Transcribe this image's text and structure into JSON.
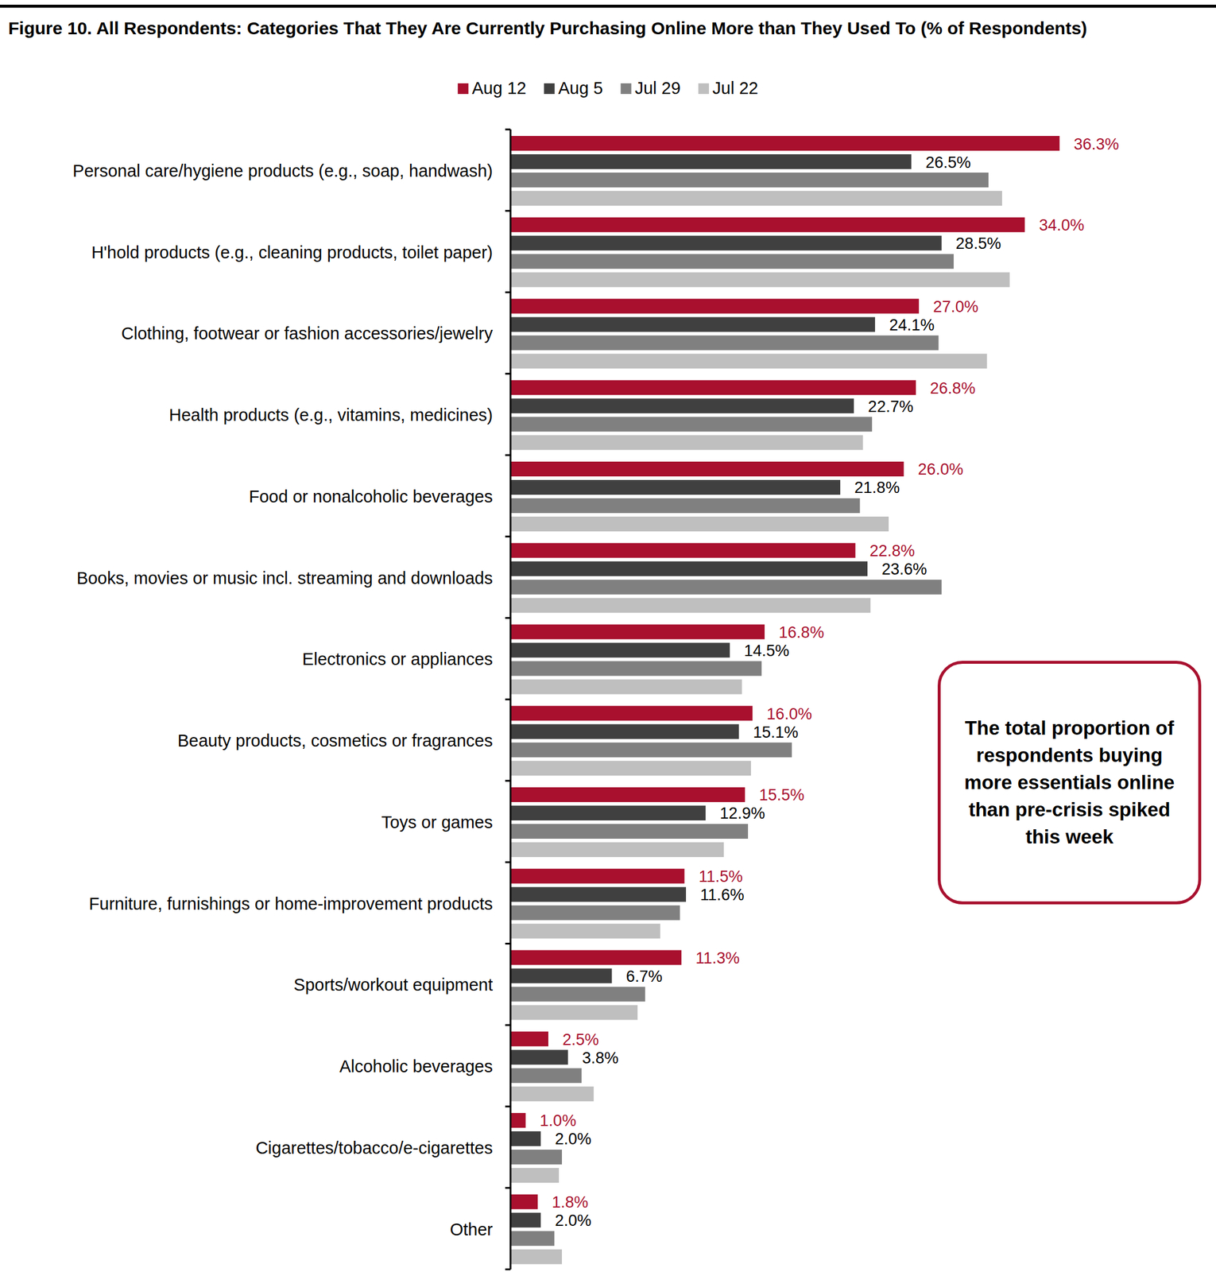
{
  "chart_data": {
    "type": "bar",
    "orientation": "horizontal",
    "title": "Figure 10. All Respondents:  Categories That They Are Currently Purchasing Online More than They Used To (% of Respondents)",
    "annotation": "The total proportion of respondents buying more essentials online than pre-crisis spiked this week",
    "categories": [
      "Personal care/hygiene products (e.g., soap, handwash)",
      "H'hold products (e.g., cleaning products, toilet paper)",
      "Clothing, footwear or fashion accessories/jewelry",
      "Health products (e.g., vitamins, medicines)",
      "Food or nonalcoholic beverages",
      "Books, movies or music incl. streaming and downloads",
      "Electronics or appliances",
      "Beauty products, cosmetics or fragrances",
      "Toys or games",
      "Furniture, furnishings or home-improvement products",
      "Sports/workout equipment",
      "Alcoholic beverages",
      "Cigarettes/tobacco/e-cigarettes",
      "Other"
    ],
    "series": [
      {
        "name": "Aug 12",
        "color": "#A8102E",
        "data_labels": true,
        "values": [
          36.3,
          34.0,
          27.0,
          26.8,
          26.0,
          22.8,
          16.8,
          16.0,
          15.5,
          11.5,
          11.3,
          2.5,
          1.0,
          1.8
        ],
        "value_labels": [
          "36.3%",
          "34.0%",
          "27.0%",
          "26.8%",
          "26.0%",
          "22.8%",
          "16.8%",
          "16.0%",
          "15.5%",
          "11.5%",
          "11.3%",
          "2.5%",
          "1.0%",
          "1.8%"
        ]
      },
      {
        "name": "Aug 5",
        "color": "#404040",
        "data_labels": true,
        "values": [
          26.5,
          28.5,
          24.1,
          22.7,
          21.8,
          23.6,
          14.5,
          15.1,
          12.9,
          11.6,
          6.7,
          3.8,
          2.0,
          2.0
        ],
        "value_labels": [
          "26.5%",
          "28.5%",
          "24.1%",
          "22.7%",
          "21.8%",
          "23.6%",
          "14.5%",
          "15.1%",
          "12.9%",
          "11.6%",
          "6.7%",
          "3.8%",
          "2.0%",
          "2.0%"
        ]
      },
      {
        "name": "Jul 29",
        "color": "#808080",
        "data_labels": false,
        "values": [
          31.6,
          29.3,
          28.3,
          23.9,
          23.1,
          28.5,
          16.6,
          18.6,
          15.7,
          11.2,
          8.9,
          4.7,
          3.4,
          2.9
        ]
      },
      {
        "name": "Jul 22",
        "color": "#BFBFBF",
        "data_labels": false,
        "values": [
          32.5,
          33.0,
          31.5,
          23.3,
          25.0,
          23.8,
          15.3,
          15.9,
          14.1,
          9.9,
          8.4,
          5.5,
          3.2,
          3.4
        ]
      }
    ],
    "xlim": [
      0,
      40
    ],
    "tick_labels": false,
    "grid": false,
    "legend": "top"
  }
}
